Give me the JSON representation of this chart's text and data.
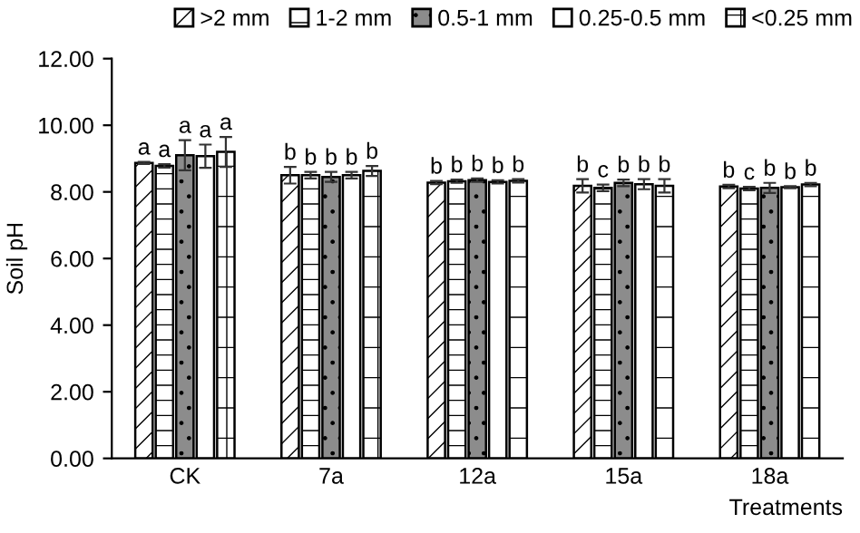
{
  "chart_data": {
    "type": "bar",
    "xlabel": "Treatments",
    "ylabel": "Soil pH",
    "categories": [
      "CK",
      "7a",
      "12a",
      "15a",
      "18a"
    ],
    "series": [
      {
        "name": ">2 mm",
        "color": "#ffffff",
        "values": [
          8.87,
          8.5,
          8.28,
          8.18,
          8.16
        ],
        "errors": [
          0.03,
          0.25,
          0.05,
          0.2,
          0.05
        ],
        "value_labels": [
          "a",
          "b",
          "b",
          "b",
          "b"
        ]
      },
      {
        "name": "1-2 mm",
        "color": "#ffffff",
        "values": [
          8.78,
          8.5,
          8.32,
          8.12,
          8.1
        ],
        "errors": [
          0.05,
          0.1,
          0.05,
          0.1,
          0.05
        ],
        "value_labels": [
          "a",
          "b",
          "b",
          "c",
          "c"
        ]
      },
      {
        "name": "0.5-1 mm",
        "color": "#8c8c8c",
        "values": [
          9.1,
          8.45,
          8.35,
          8.27,
          8.12
        ],
        "errors": [
          0.45,
          0.15,
          0.05,
          0.1,
          0.15
        ],
        "value_labels": [
          "a",
          "b",
          "b",
          "b",
          "b"
        ]
      },
      {
        "name": "0.25-0.5 mm",
        "color": "#ffffff",
        "values": [
          9.07,
          8.5,
          8.3,
          8.23,
          8.14
        ],
        "errors": [
          0.35,
          0.1,
          0.05,
          0.15,
          0.03
        ],
        "value_labels": [
          "a",
          "b",
          "b",
          "b",
          "b"
        ]
      },
      {
        "name": "<0.25 mm",
        "color": "#ffffff",
        "values": [
          9.2,
          8.63,
          8.33,
          8.18,
          8.22
        ],
        "errors": [
          0.45,
          0.15,
          0.05,
          0.2,
          0.05
        ],
        "value_labels": [
          "a",
          "b",
          "b",
          "b",
          "b"
        ]
      }
    ],
    "ylim": [
      0,
      12
    ],
    "yticks": [
      {
        "value": 0,
        "label": "0.00"
      },
      {
        "value": 2,
        "label": "2.00"
      },
      {
        "value": 4,
        "label": "4.00"
      },
      {
        "value": 6,
        "label": "6.00"
      },
      {
        "value": 8,
        "label": "8.00"
      },
      {
        "value": 10,
        "label": "10.00"
      },
      {
        "value": 12,
        "label": "12.00"
      }
    ],
    "grid": false,
    "legend": "top"
  }
}
